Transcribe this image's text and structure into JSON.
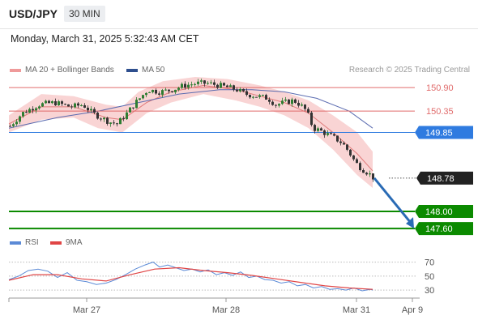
{
  "header": {
    "pair": "USD/JPY",
    "timeframe": "30 MIN"
  },
  "datetime": "Monday, March 31, 2025 5:32:43 AM CET",
  "legend": {
    "ma20_label": "MA 20 + Bollinger Bands",
    "ma50_label": "MA 50",
    "rsi_label": "RSI",
    "rsi_ma_label": "9MA",
    "credit": "Research © 2025 Trading Central"
  },
  "colors": {
    "resistance": "#e06b6b",
    "pivot": "#2f7be0",
    "support": "#0b8a00",
    "last": "#222222",
    "band": "#f8c9c9",
    "ma20": "#e07a7a",
    "ma50": "#5a6bb0",
    "candle_up": "#2e7d32",
    "candle_down": "#333333",
    "rsi": "#5b8ad6",
    "rsi_ma": "#e04545",
    "arrow": "#2a6bb5"
  },
  "chart_data": {
    "type": "candlestick",
    "y_range": [
      147.45,
      151.15
    ],
    "x_ticks": [
      "Mar 27",
      "Mar 28",
      "Mar 31",
      "Apr 9"
    ],
    "levels": [
      {
        "label": "150.90",
        "value": 150.9,
        "kind": "resistance"
      },
      {
        "label": "150.35",
        "value": 150.35,
        "kind": "resistance"
      },
      {
        "label": "149.85",
        "value": 149.85,
        "kind": "pivot"
      },
      {
        "label": "148.78",
        "value": 148.78,
        "kind": "last"
      },
      {
        "label": "148.00",
        "value": 148.0,
        "kind": "support"
      },
      {
        "label": "147.60",
        "value": 147.6,
        "kind": "support"
      }
    ],
    "price_path": [
      [
        0,
        150.0
      ],
      [
        15,
        150.3
      ],
      [
        35,
        150.5
      ],
      [
        55,
        150.55
      ],
      [
        75,
        150.45
      ],
      [
        90,
        150.5
      ],
      [
        102,
        150.3
      ],
      [
        112,
        150.2
      ],
      [
        122,
        150.1
      ],
      [
        132,
        150.05
      ],
      [
        142,
        150.25
      ],
      [
        155,
        150.55
      ],
      [
        170,
        150.85
      ],
      [
        185,
        150.8
      ],
      [
        200,
        150.85
      ],
      [
        215,
        150.95
      ],
      [
        230,
        151.0
      ],
      [
        245,
        151.0
      ],
      [
        258,
        150.95
      ],
      [
        270,
        150.9
      ],
      [
        280,
        150.85
      ],
      [
        290,
        150.75
      ],
      [
        305,
        150.7
      ],
      [
        318,
        150.65
      ],
      [
        328,
        150.5
      ],
      [
        338,
        150.55
      ],
      [
        350,
        150.6
      ],
      [
        358,
        150.5
      ],
      [
        366,
        150.35
      ],
      [
        374,
        149.95
      ],
      [
        382,
        149.9
      ],
      [
        392,
        149.8
      ],
      [
        402,
        149.7
      ],
      [
        410,
        149.6
      ],
      [
        418,
        149.4
      ],
      [
        426,
        149.15
      ],
      [
        434,
        149.0
      ],
      [
        442,
        148.9
      ],
      [
        449,
        148.78
      ]
    ],
    "bands": {
      "upper": [
        [
          0,
          150.25
        ],
        [
          40,
          150.75
        ],
        [
          80,
          150.7
        ],
        [
          120,
          150.5
        ],
        [
          140,
          150.45
        ],
        [
          160,
          150.8
        ],
        [
          190,
          151.05
        ],
        [
          230,
          151.15
        ],
        [
          270,
          151.1
        ],
        [
          310,
          150.95
        ],
        [
          340,
          150.8
        ],
        [
          370,
          150.6
        ],
        [
          400,
          150.25
        ],
        [
          430,
          149.85
        ],
        [
          449,
          149.4
        ]
      ],
      "lower": [
        [
          0,
          149.85
        ],
        [
          40,
          150.15
        ],
        [
          80,
          150.2
        ],
        [
          110,
          149.95
        ],
        [
          140,
          149.85
        ],
        [
          170,
          150.3
        ],
        [
          200,
          150.55
        ],
        [
          240,
          150.75
        ],
        [
          280,
          150.6
        ],
        [
          310,
          150.45
        ],
        [
          340,
          150.25
        ],
        [
          370,
          149.95
        ],
        [
          400,
          149.45
        ],
        [
          430,
          148.85
        ],
        [
          449,
          148.55
        ]
      ],
      "middle": [
        [
          0,
          150.05
        ],
        [
          40,
          150.45
        ],
        [
          80,
          150.45
        ],
        [
          120,
          150.2
        ],
        [
          140,
          150.15
        ],
        [
          170,
          150.55
        ],
        [
          200,
          150.8
        ],
        [
          240,
          150.95
        ],
        [
          280,
          150.85
        ],
        [
          310,
          150.7
        ],
        [
          340,
          150.55
        ],
        [
          370,
          150.3
        ],
        [
          400,
          149.85
        ],
        [
          430,
          149.35
        ],
        [
          449,
          148.95
        ]
      ]
    },
    "ma50": [
      [
        0,
        149.95
      ],
      [
        60,
        150.2
      ],
      [
        110,
        150.35
      ],
      [
        160,
        150.55
      ],
      [
        210,
        150.75
      ],
      [
        260,
        150.85
      ],
      [
        300,
        150.85
      ],
      [
        340,
        150.8
      ],
      [
        380,
        150.65
      ],
      [
        420,
        150.35
      ],
      [
        449,
        149.95
      ]
    ],
    "forecast_target": 147.6,
    "rsi": {
      "y_range": [
        22,
        80
      ],
      "ticks": [
        70,
        50,
        30
      ],
      "values": [
        [
          0,
          45
        ],
        [
          12,
          50
        ],
        [
          24,
          58
        ],
        [
          36,
          60
        ],
        [
          48,
          57
        ],
        [
          60,
          48
        ],
        [
          72,
          55
        ],
        [
          84,
          44
        ],
        [
          96,
          42
        ],
        [
          108,
          38
        ],
        [
          120,
          40
        ],
        [
          132,
          45
        ],
        [
          144,
          52
        ],
        [
          156,
          60
        ],
        [
          168,
          66
        ],
        [
          178,
          70
        ],
        [
          186,
          63
        ],
        [
          196,
          66
        ],
        [
          206,
          62
        ],
        [
          216,
          58
        ],
        [
          226,
          60
        ],
        [
          236,
          56
        ],
        [
          246,
          59
        ],
        [
          256,
          52
        ],
        [
          266,
          55
        ],
        [
          276,
          51
        ],
        [
          286,
          56
        ],
        [
          296,
          48
        ],
        [
          306,
          50
        ],
        [
          316,
          45
        ],
        [
          326,
          44
        ],
        [
          336,
          40
        ],
        [
          346,
          42
        ],
        [
          356,
          36
        ],
        [
          366,
          38
        ],
        [
          376,
          33
        ],
        [
          386,
          35
        ],
        [
          396,
          31
        ],
        [
          406,
          32
        ],
        [
          416,
          30
        ],
        [
          426,
          33
        ],
        [
          436,
          29
        ],
        [
          446,
          31
        ],
        [
          449,
          30
        ]
      ],
      "ma": [
        [
          0,
          44
        ],
        [
          30,
          52
        ],
        [
          60,
          52
        ],
        [
          90,
          46
        ],
        [
          120,
          43
        ],
        [
          150,
          52
        ],
        [
          180,
          60
        ],
        [
          210,
          62
        ],
        [
          240,
          58
        ],
        [
          270,
          55
        ],
        [
          300,
          51
        ],
        [
          330,
          46
        ],
        [
          360,
          41
        ],
        [
          390,
          36
        ],
        [
          420,
          33
        ],
        [
          449,
          31
        ]
      ]
    }
  }
}
